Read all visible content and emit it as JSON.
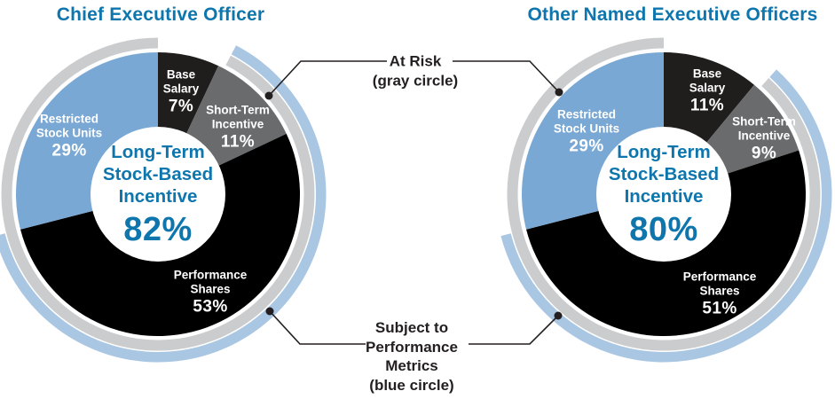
{
  "page": {
    "background": "#ffffff"
  },
  "colors": {
    "primary_blue": "#0e76ad",
    "black": "#201d1d",
    "dark_gray": "#6a6b6d",
    "light_blue": "#7aa8d4",
    "ring_gray": "#cbcccd",
    "ring_light_blue": "#a9c6e3",
    "text_dark": "#231f20",
    "white": "#ffffff"
  },
  "annotations": {
    "at_risk": {
      "lines": [
        "At Risk",
        "(gray circle)"
      ],
      "points_to": "gray ring on both charts"
    },
    "subject_to_performance": {
      "lines": [
        "Subject to",
        "Performance",
        "Metrics",
        "(blue circle)"
      ],
      "points_to": "blue ring on both charts"
    }
  },
  "chart_data": [
    {
      "type": "donut",
      "title": "Chief Executive Officer",
      "center_label": {
        "lines": [
          "Long-Term",
          "Stock-Based",
          "Incentive"
        ],
        "value": "82%"
      },
      "slices": [
        {
          "name": "Base Salary",
          "label_lines": [
            "Base",
            "Salary"
          ],
          "pct": "7%",
          "value": 7,
          "color_key": "black"
        },
        {
          "name": "Short-Term Incentive",
          "label_lines": [
            "Short-Term",
            "Incentive"
          ],
          "pct": "11%",
          "value": 11,
          "color_key": "dark_gray"
        },
        {
          "name": "Performance Shares",
          "label_lines": [
            "Performance",
            "Shares"
          ],
          "pct": "53%",
          "value": 53,
          "color_key": "blue"
        },
        {
          "name": "Restricted Stock Units",
          "label_lines": [
            "Restricted",
            "Stock Units"
          ],
          "pct": "29%",
          "value": 29,
          "color_key": "light_blue"
        }
      ],
      "rings": {
        "gray": {
          "meaning": "At Risk",
          "covers": [
            "Short-Term Incentive",
            "Performance Shares",
            "Restricted Stock Units"
          ]
        },
        "blue": {
          "meaning": "Subject to Performance Metrics",
          "covers": [
            "Short-Term Incentive",
            "Performance Shares"
          ]
        }
      }
    },
    {
      "type": "donut",
      "title": "Other Named Executive Officers",
      "center_label": {
        "lines": [
          "Long-Term",
          "Stock-Based",
          "Incentive"
        ],
        "value": "80%"
      },
      "slices": [
        {
          "name": "Base Salary",
          "label_lines": [
            "Base",
            "Salary"
          ],
          "pct": "11%",
          "value": 11,
          "color_key": "black"
        },
        {
          "name": "Short-Term Incentive",
          "label_lines": [
            "Short-Term",
            "Incentive"
          ],
          "pct": "9%",
          "value": 9,
          "color_key": "dark_gray"
        },
        {
          "name": "Performance Shares",
          "label_lines": [
            "Performance",
            "Shares"
          ],
          "pct": "51%",
          "value": 51,
          "color_key": "blue"
        },
        {
          "name": "Restricted Stock Units",
          "label_lines": [
            "Restricted",
            "Stock Units"
          ],
          "pct": "29%",
          "value": 29,
          "color_key": "light_blue"
        }
      ],
      "rings": {
        "gray": {
          "meaning": "At Risk",
          "covers": [
            "Short-Term Incentive",
            "Performance Shares",
            "Restricted Stock Units"
          ]
        },
        "blue": {
          "meaning": "Subject to Performance Metrics",
          "covers": [
            "Short-Term Incentive",
            "Performance Shares"
          ]
        }
      }
    }
  ]
}
